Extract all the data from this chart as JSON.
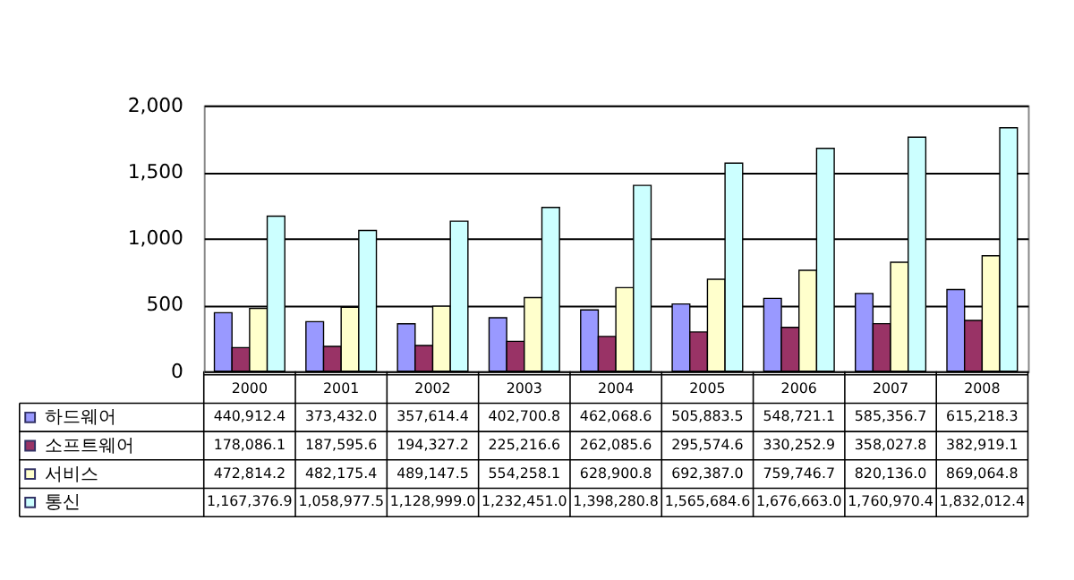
{
  "chart_data": {
    "type": "bar",
    "categories": [
      "2000",
      "2001",
      "2002",
      "2003",
      "2004",
      "2005",
      "2006",
      "2007",
      "2008"
    ],
    "series": [
      {
        "name": "하드웨어",
        "color": "#9999ff",
        "values": [
          440.9124,
          373.432,
          357.6144,
          402.7008,
          462.0686,
          505.8835,
          548.7211,
          585.3567,
          615.2183
        ]
      },
      {
        "name": "소프트웨어",
        "color": "#993366",
        "values": [
          178.0861,
          187.5956,
          194.3272,
          225.2166,
          262.0856,
          295.5746,
          330.2529,
          358.0278,
          382.9191
        ]
      },
      {
        "name": "서비스",
        "color": "#ffffcc",
        "values": [
          472.8142,
          482.1754,
          489.1475,
          554.2581,
          628.9008,
          692.387,
          759.7467,
          820.136,
          869.0648
        ]
      },
      {
        "name": "통신",
        "color": "#ccffff",
        "values": [
          1167.3769,
          1058.9775,
          1128.999,
          1232.451,
          1398.2808,
          1565.6846,
          1676.663,
          1760.9704,
          1832.0124
        ]
      }
    ],
    "annotations": [
      "440,912.4",
      "373,432.0",
      "357,614.4",
      "402,700.8",
      "462,068.6",
      "505,883.5",
      "548,721.1",
      "585,356.7",
      "615,218.3",
      "178,086.1",
      "187,595.6",
      "194,327.2",
      "225,216.6",
      "262,085.6",
      "295,574.6",
      "330,252.9",
      "358,027.8",
      "382,919.1",
      "472,814.2",
      "482,175.4",
      "489,147.5",
      "554,258.1",
      "628,900.8",
      "692,387.0",
      "759,746.7",
      "820,136.0",
      "869,064.8",
      "1,167,376.9",
      "1,058,977.5",
      "1,128,999.0",
      "1,232,451.0",
      "1,398,280.8",
      "1,565,684.6",
      "1,676,663.0",
      "1,760,970.4",
      "1,832,012.4"
    ],
    "ylim": [
      0,
      2000
    ],
    "yticks": [
      0,
      {
        "value": 500,
        "label": "500"
      },
      {
        "value": 1000,
        "label": "1,000"
      },
      {
        "value": 1500,
        "label": "1,500"
      },
      {
        "value": 2000,
        "label": "2,000"
      }
    ],
    "grid": "y",
    "legend": "bottom"
  }
}
